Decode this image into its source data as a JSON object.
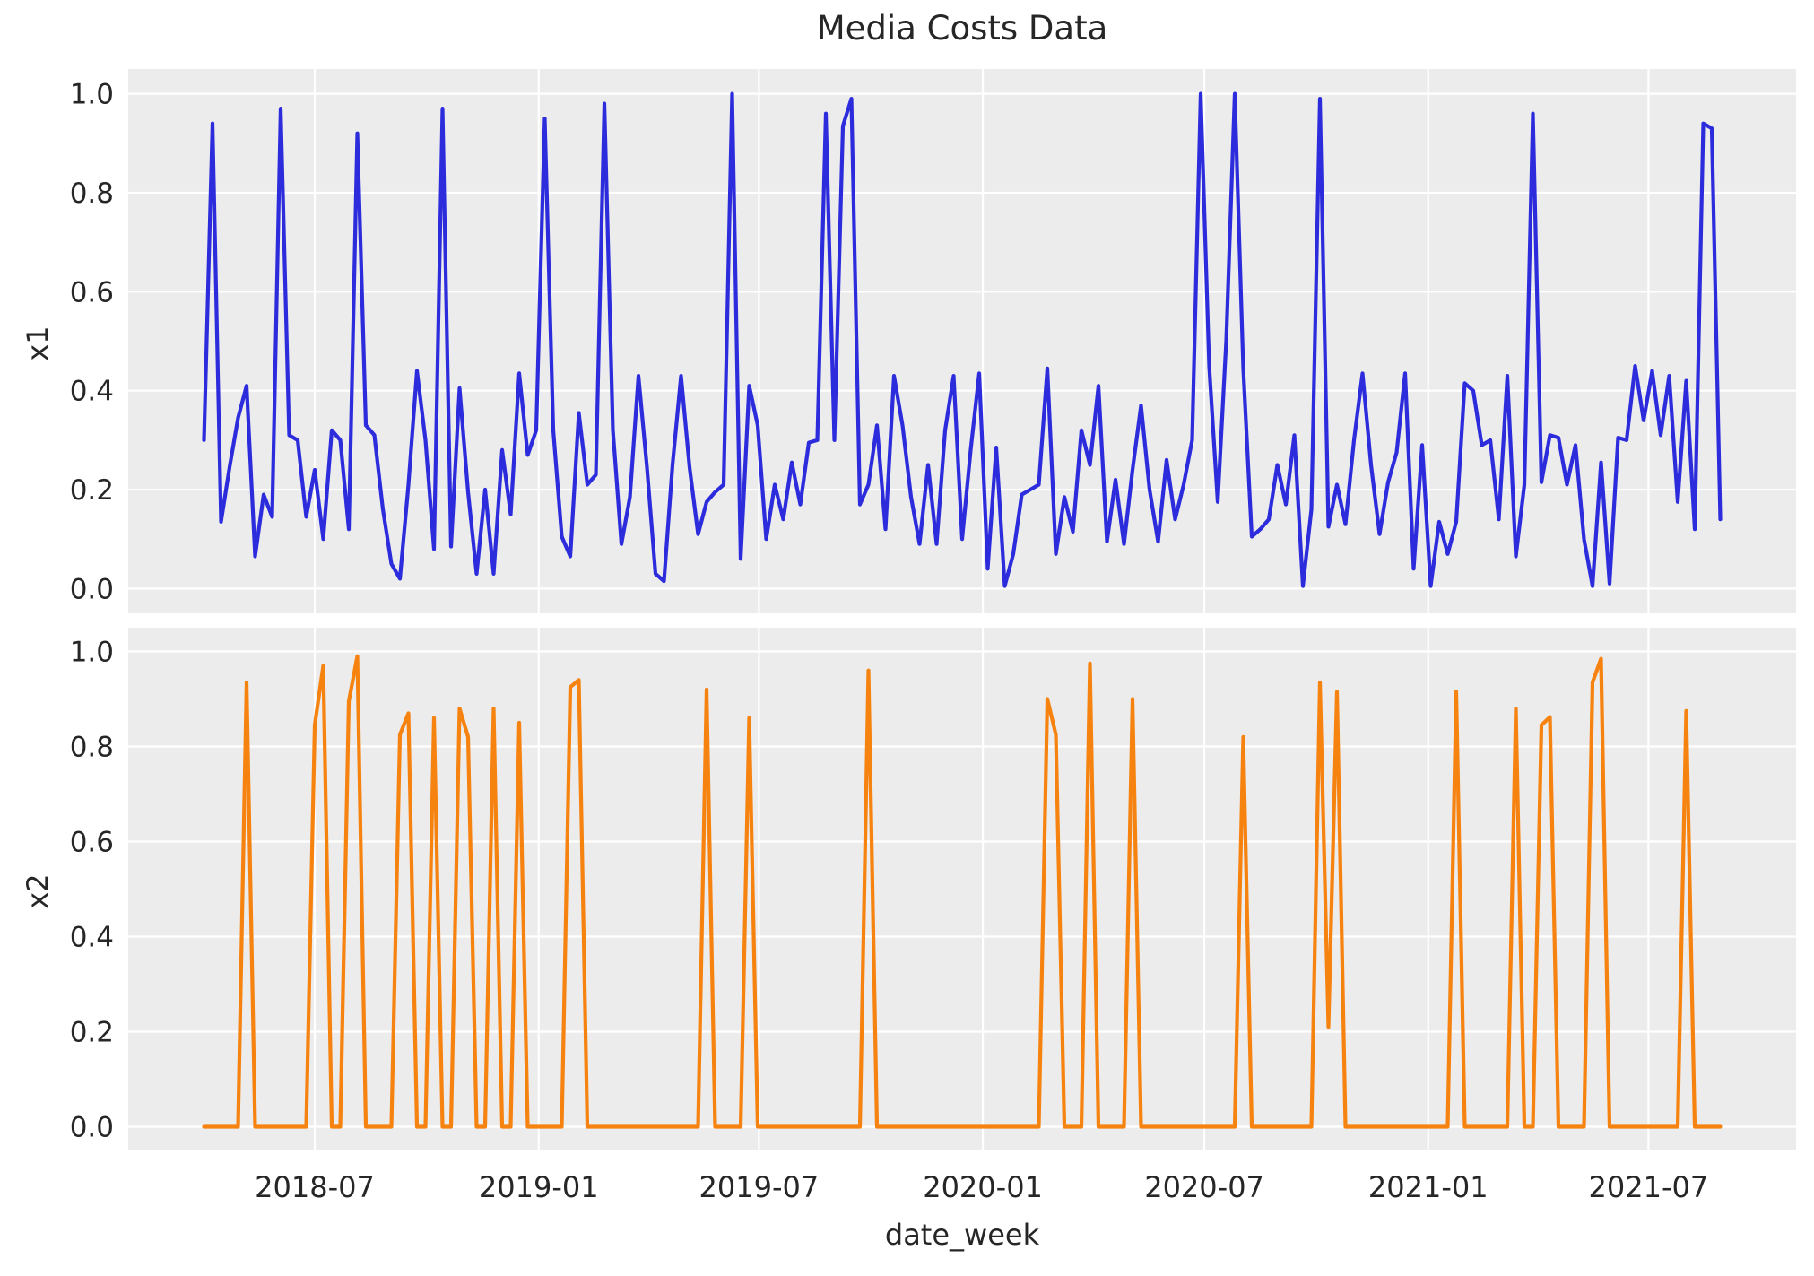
{
  "title": "Media Costs Data",
  "xlabel": "date_week",
  "chart_data": {
    "type": "line",
    "title": "Media Costs Data",
    "xlabel": "date_week",
    "grid": true,
    "legend_position": "none",
    "background_color": "#ececec",
    "gridline_color": "#ffffff",
    "text_color": "#262626",
    "ylim": [
      -0.05,
      1.05
    ],
    "y_ticks": [
      0.0,
      0.2,
      0.4,
      0.6,
      0.8,
      1.0
    ],
    "x_start_date": "2018-04-01",
    "x_step_days": 7,
    "x_ticks": [
      {
        "date": "2018-07-01",
        "label": "2018-07"
      },
      {
        "date": "2019-01-01",
        "label": "2019-01"
      },
      {
        "date": "2019-07-01",
        "label": "2019-07"
      },
      {
        "date": "2020-01-01",
        "label": "2020-01"
      },
      {
        "date": "2020-07-01",
        "label": "2020-07"
      },
      {
        "date": "2021-01-01",
        "label": "2021-01"
      },
      {
        "date": "2021-07-01",
        "label": "2021-07"
      }
    ],
    "series": [
      {
        "name": "x1",
        "color": "#2c2cdd",
        "subplot": 0,
        "values": [
          0.3,
          0.94,
          0.135,
          0.245,
          0.345,
          0.41,
          0.065,
          0.19,
          0.145,
          0.97,
          0.31,
          0.3,
          0.145,
          0.24,
          0.1,
          0.32,
          0.3,
          0.12,
          0.92,
          0.33,
          0.31,
          0.16,
          0.05,
          0.02,
          0.21,
          0.44,
          0.3,
          0.08,
          0.97,
          0.085,
          0.405,
          0.195,
          0.03,
          0.2,
          0.03,
          0.28,
          0.15,
          0.435,
          0.27,
          0.32,
          0.95,
          0.32,
          0.105,
          0.065,
          0.355,
          0.21,
          0.23,
          0.98,
          0.32,
          0.09,
          0.185,
          0.43,
          0.245,
          0.03,
          0.015,
          0.25,
          0.43,
          0.245,
          0.11,
          0.175,
          0.195,
          0.21,
          1.0,
          0.06,
          0.41,
          0.33,
          0.1,
          0.21,
          0.14,
          0.255,
          0.17,
          0.295,
          0.3,
          0.96,
          0.3,
          0.935,
          0.99,
          0.17,
          0.21,
          0.33,
          0.12,
          0.43,
          0.33,
          0.185,
          0.09,
          0.25,
          0.09,
          0.32,
          0.43,
          0.1,
          0.28,
          0.435,
          0.04,
          0.285,
          0.005,
          0.07,
          0.19,
          0.2,
          0.21,
          0.445,
          0.07,
          0.185,
          0.115,
          0.32,
          0.25,
          0.41,
          0.095,
          0.22,
          0.09,
          0.24,
          0.37,
          0.2,
          0.095,
          0.26,
          0.14,
          0.21,
          0.3,
          1.0,
          0.45,
          0.175,
          0.5,
          1.0,
          0.445,
          0.105,
          0.12,
          0.14,
          0.25,
          0.17,
          0.31,
          0.005,
          0.16,
          0.99,
          0.125,
          0.21,
          0.13,
          0.3,
          0.435,
          0.25,
          0.11,
          0.215,
          0.275,
          0.435,
          0.04,
          0.29,
          0.005,
          0.135,
          0.07,
          0.135,
          0.415,
          0.4,
          0.29,
          0.3,
          0.14,
          0.43,
          0.065,
          0.21,
          0.96,
          0.215,
          0.31,
          0.305,
          0.21,
          0.29,
          0.1,
          0.005,
          0.255,
          0.01,
          0.305,
          0.3,
          0.45,
          0.34,
          0.44,
          0.31,
          0.43,
          0.175,
          0.42,
          0.12,
          0.94,
          0.93,
          0.14
        ]
      },
      {
        "name": "x2",
        "color": "#f6820f",
        "subplot": 1,
        "values": [
          0,
          0,
          0,
          0,
          0,
          0.935,
          0,
          0,
          0,
          0,
          0,
          0,
          0,
          0.845,
          0.97,
          0,
          0,
          0.895,
          0.99,
          0,
          0,
          0,
          0,
          0.825,
          0.87,
          0,
          0,
          0.86,
          0,
          0,
          0.88,
          0.82,
          0,
          0,
          0.88,
          0,
          0,
          0.85,
          0,
          0,
          0,
          0,
          0,
          0.925,
          0.94,
          0,
          0,
          0,
          0,
          0,
          0,
          0,
          0,
          0,
          0,
          0,
          0,
          0,
          0,
          0.92,
          0,
          0,
          0,
          0,
          0.86,
          0,
          0,
          0,
          0,
          0,
          0,
          0,
          0,
          0,
          0,
          0,
          0,
          0,
          0.96,
          0,
          0,
          0,
          0,
          0,
          0,
          0,
          0,
          0,
          0,
          0,
          0,
          0,
          0,
          0,
          0,
          0,
          0,
          0,
          0,
          0.9,
          0.825,
          0,
          0,
          0,
          0.975,
          0,
          0,
          0,
          0,
          0.9,
          0,
          0,
          0,
          0,
          0,
          0,
          0,
          0,
          0,
          0,
          0,
          0,
          0.82,
          0,
          0,
          0,
          0,
          0,
          0,
          0,
          0,
          0.935,
          0.21,
          0.915,
          0,
          0,
          0,
          0,
          0,
          0,
          0,
          0,
          0,
          0,
          0,
          0,
          0,
          0.915,
          0,
          0,
          0,
          0,
          0,
          0,
          0.88,
          0,
          0,
          0.845,
          0.862,
          0,
          0,
          0,
          0,
          0.935,
          0.985,
          0,
          0,
          0,
          0,
          0,
          0,
          0,
          0,
          0,
          0.875,
          0,
          0,
          0,
          0
        ]
      }
    ]
  }
}
